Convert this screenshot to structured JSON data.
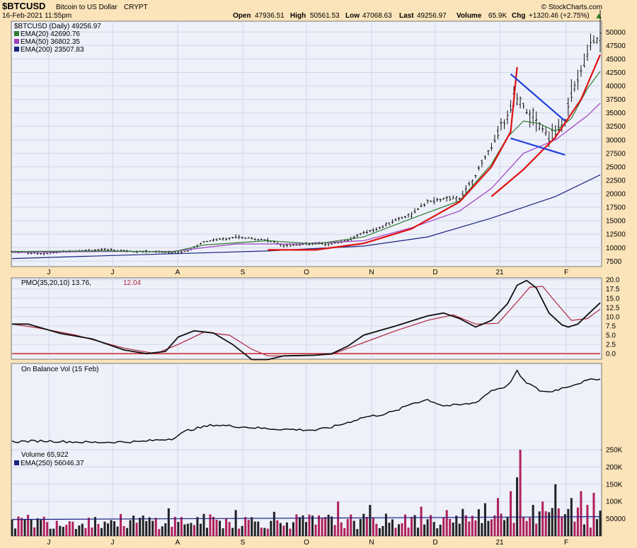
{
  "header": {
    "symbol": "$BTCUSD",
    "name": "Bitcoin to US Dollar",
    "exchange": "CRYPT",
    "date": "16-Feb-2021 11:55pm",
    "brand": "© StockCharts.com",
    "open_label": "Open",
    "open": "47936.51",
    "high_label": "High",
    "high": "50561.53",
    "low_label": "Low",
    "low": "47068.63",
    "last_label": "Last",
    "last": "49256.97",
    "volume_label": "Volume",
    "volume": "65.9K",
    "chg_label": "Chg",
    "chg": "+1320.46 (+2.75%)"
  },
  "colors": {
    "background": "#fbe4ba",
    "panel": "#eef0fa",
    "grid": "#cfd8ea",
    "ema20": "#2e7d32",
    "ema50": "#a040c0",
    "ema200": "#1a237e",
    "trend_red": "#e01010",
    "trend_blue": "#1f3fd8",
    "pmo_signal": "#b0263d",
    "zero_line": "#c00000",
    "vol_up": "#222222",
    "vol_down": "#b0205a"
  },
  "chart_data": [
    {
      "type": "candlestick",
      "legend": {
        "price": "$BTCUSD (Daily) 49256.97",
        "ema20": "EMA(20) 42690.76",
        "ema50": "EMA(50) 36802.35",
        "ema200": "EMA(200) 23507.83"
      },
      "ylim": [
        6500,
        52000
      ],
      "yticks": [
        "50000",
        "47500",
        "45000",
        "42500",
        "40000",
        "37500",
        "35000",
        "32500",
        "30000",
        "27500",
        "25000",
        "22500",
        "20000",
        "17500",
        "15000",
        "12500",
        "10000",
        "7500"
      ],
      "months": [
        "J",
        "J",
        "A",
        "S",
        "O",
        "N",
        "D",
        "21",
        "F"
      ],
      "price_path": [
        [
          0,
          9300
        ],
        [
          10,
          8900
        ],
        [
          20,
          9450
        ],
        [
          30,
          9600
        ],
        [
          40,
          9300
        ],
        [
          45,
          9250
        ],
        [
          50,
          9100
        ],
        [
          55,
          9400
        ],
        [
          60,
          11100
        ],
        [
          65,
          11600
        ],
        [
          70,
          11900
        ],
        [
          75,
          11700
        ],
        [
          80,
          11400
        ],
        [
          85,
          10400
        ],
        [
          90,
          10600
        ],
        [
          95,
          10800
        ],
        [
          100,
          10700
        ],
        [
          105,
          11400
        ],
        [
          110,
          12800
        ],
        [
          115,
          13600
        ],
        [
          120,
          15200
        ],
        [
          125,
          16200
        ],
        [
          130,
          18500
        ],
        [
          135,
          19000
        ],
        [
          140,
          19200
        ],
        [
          145,
          23400
        ],
        [
          150,
          28900
        ],
        [
          155,
          34000
        ],
        [
          157,
          38000
        ],
        [
          160,
          36500
        ],
        [
          162,
          34500
        ],
        [
          165,
          33000
        ],
        [
          168,
          30500
        ],
        [
          171,
          31800
        ],
        [
          173,
          33500
        ],
        [
          175,
          38000
        ],
        [
          178,
          43000
        ],
        [
          181,
          47500
        ],
        [
          184,
          49257
        ]
      ],
      "ema20_path": [
        [
          0,
          9300
        ],
        [
          30,
          9400
        ],
        [
          50,
          9200
        ],
        [
          60,
          10500
        ],
        [
          80,
          11300
        ],
        [
          95,
          10700
        ],
        [
          110,
          12000
        ],
        [
          125,
          15400
        ],
        [
          140,
          18700
        ],
        [
          150,
          25500
        ],
        [
          155,
          30500
        ],
        [
          160,
          33500
        ],
        [
          165,
          33000
        ],
        [
          170,
          31600
        ],
        [
          175,
          34000
        ],
        [
          180,
          39500
        ],
        [
          184,
          42691
        ]
      ],
      "ema50_path": [
        [
          0,
          9100
        ],
        [
          30,
          9300
        ],
        [
          50,
          9300
        ],
        [
          70,
          10700
        ],
        [
          90,
          10700
        ],
        [
          110,
          11300
        ],
        [
          125,
          13700
        ],
        [
          140,
          16800
        ],
        [
          150,
          21000
        ],
        [
          160,
          27500
        ],
        [
          170,
          30000
        ],
        [
          180,
          34500
        ],
        [
          184,
          36802
        ]
      ],
      "ema200_path": [
        [
          0,
          8000
        ],
        [
          40,
          8700
        ],
        [
          80,
          9400
        ],
        [
          110,
          10300
        ],
        [
          130,
          12000
        ],
        [
          150,
          15500
        ],
        [
          170,
          19500
        ],
        [
          184,
          23508
        ]
      ],
      "trendlines": [
        {
          "color": "trend_red",
          "points": [
            [
              80,
              9600
            ],
            [
              95,
              9600
            ],
            [
              110,
              10800
            ],
            [
              125,
              13500
            ],
            [
              140,
              18500
            ],
            [
              150,
              25000
            ],
            [
              156,
              31500
            ],
            [
              158,
              43500
            ]
          ]
        },
        {
          "color": "trend_red",
          "points": [
            [
              150,
              19500
            ],
            [
              160,
              24500
            ],
            [
              170,
              30500
            ],
            [
              178,
              37500
            ],
            [
              184,
              45800
            ]
          ]
        },
        {
          "color": "trend_blue",
          "points": [
            [
              156,
              42200
            ],
            [
              173,
              33500
            ]
          ]
        },
        {
          "color": "trend_blue",
          "points": [
            [
              156,
              30300
            ],
            [
              173,
              27200
            ]
          ]
        }
      ]
    },
    {
      "type": "line",
      "legend_main": "PMO(35,20,10) 13.76,",
      "legend_signal": "12.04",
      "ylim": [
        -1.5,
        20.5
      ],
      "yticks": [
        "20.0",
        "17.5",
        "15.0",
        "12.5",
        "10.0",
        "7.5",
        "5.0",
        "2.5",
        "0.0"
      ],
      "series": [
        {
          "name": "PMO",
          "points": [
            [
              0,
              8.0
            ],
            [
              5,
              8.0
            ],
            [
              15,
              5.5
            ],
            [
              25,
              4.0
            ],
            [
              35,
              1.0
            ],
            [
              42,
              0.0
            ],
            [
              48,
              0.6
            ],
            [
              52,
              4.5
            ],
            [
              57,
              6.2
            ],
            [
              63,
              5.6
            ],
            [
              69,
              2.5
            ],
            [
              75,
              -1.6
            ],
            [
              80,
              -1.6
            ],
            [
              85,
              -0.6
            ],
            [
              95,
              -0.4
            ],
            [
              100,
              0.0
            ],
            [
              105,
              2.0
            ],
            [
              110,
              5.0
            ],
            [
              120,
              7.5
            ],
            [
              130,
              10.2
            ],
            [
              135,
              11.0
            ],
            [
              140,
              9.5
            ],
            [
              145,
              7.2
            ],
            [
              150,
              9.0
            ],
            [
              155,
              13.5
            ],
            [
              158,
              18.5
            ],
            [
              161,
              19.8
            ],
            [
              164,
              17.8
            ],
            [
              168,
              11.0
            ],
            [
              172,
              7.8
            ],
            [
              174,
              7.2
            ],
            [
              177,
              8.0
            ],
            [
              180,
              10.5
            ],
            [
              184,
              13.76
            ]
          ]
        },
        {
          "name": "Signal",
          "points": [
            [
              0,
              8.0
            ],
            [
              8,
              7.0
            ],
            [
              20,
              5.0
            ],
            [
              35,
              1.5
            ],
            [
              45,
              0.0
            ],
            [
              52,
              2.5
            ],
            [
              60,
              5.8
            ],
            [
              68,
              5.0
            ],
            [
              75,
              1.2
            ],
            [
              80,
              -0.6
            ],
            [
              90,
              -0.6
            ],
            [
              100,
              -0.2
            ],
            [
              110,
              3.0
            ],
            [
              120,
              6.2
            ],
            [
              130,
              9.0
            ],
            [
              138,
              10.5
            ],
            [
              145,
              8.0
            ],
            [
              152,
              8.2
            ],
            [
              158,
              14.0
            ],
            [
              162,
              18.0
            ],
            [
              166,
              18.2
            ],
            [
              170,
              14.0
            ],
            [
              175,
              9.0
            ],
            [
              180,
              9.5
            ],
            [
              184,
              12.04
            ]
          ]
        }
      ]
    },
    {
      "type": "line",
      "legend": "On Balance Vol (15 Feb)",
      "series": [
        {
          "name": "On Balance Vol",
          "points": [
            [
              0,
              0.05
            ],
            [
              10,
              0.06
            ],
            [
              25,
              0.04
            ],
            [
              40,
              0.05
            ],
            [
              50,
              0.09
            ],
            [
              55,
              0.2
            ],
            [
              63,
              0.27
            ],
            [
              70,
              0.25
            ],
            [
              80,
              0.22
            ],
            [
              95,
              0.2
            ],
            [
              100,
              0.24
            ],
            [
              105,
              0.3
            ],
            [
              110,
              0.37
            ],
            [
              115,
              0.4
            ],
            [
              120,
              0.45
            ],
            [
              125,
              0.55
            ],
            [
              130,
              0.6
            ],
            [
              135,
              0.52
            ],
            [
              140,
              0.53
            ],
            [
              145,
              0.56
            ],
            [
              150,
              0.72
            ],
            [
              155,
              0.78
            ],
            [
              158,
              0.97
            ],
            [
              160,
              0.85
            ],
            [
              162,
              0.8
            ],
            [
              165,
              0.72
            ],
            [
              168,
              0.7
            ],
            [
              172,
              0.75
            ],
            [
              176,
              0.8
            ],
            [
              180,
              0.85
            ],
            [
              184,
              0.88
            ]
          ]
        }
      ]
    },
    {
      "type": "bar",
      "legend": "Volume 65,922",
      "ema_label": "EMA(250) 56046.37",
      "ylim": [
        0,
        250000
      ],
      "yticks": [
        "250K",
        "200K",
        "150K",
        "100K",
        "50000"
      ],
      "ema250": 56046,
      "spikes": [
        [
          49,
          80000
        ],
        [
          70,
          75000
        ],
        [
          82,
          70000
        ],
        [
          102,
          100000
        ],
        [
          112,
          90000
        ],
        [
          128,
          85000
        ],
        [
          136,
          75000
        ],
        [
          142,
          60000
        ],
        [
          148,
          95000
        ],
        [
          152,
          110000
        ],
        [
          156,
          130000
        ],
        [
          158,
          170000
        ],
        [
          159,
          250000
        ],
        [
          163,
          90000
        ],
        [
          166,
          100000
        ],
        [
          170,
          150000
        ],
        [
          175,
          110000
        ],
        [
          178,
          130000
        ],
        [
          180,
          90000
        ],
        [
          182,
          125000
        ]
      ]
    }
  ]
}
